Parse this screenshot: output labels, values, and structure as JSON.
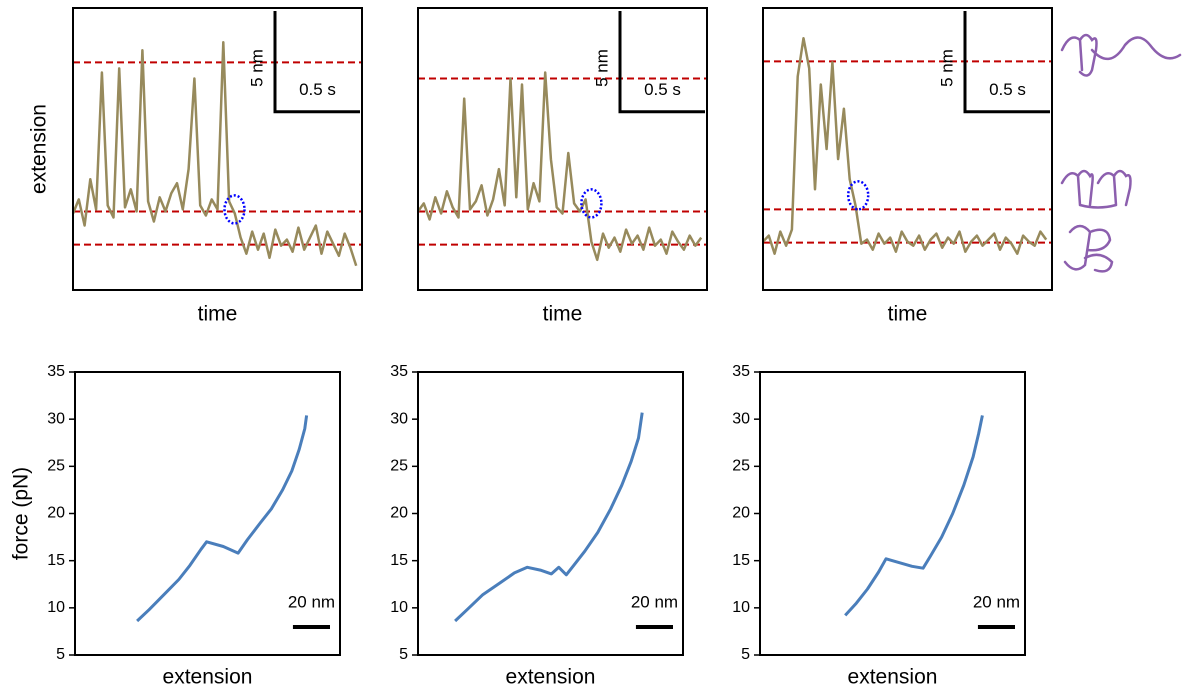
{
  "chart_data": [
    {
      "type": "line",
      "ylabel": "extension",
      "xlabel": "time",
      "xlim": [
        0,
        1.7
      ],
      "ylim": [
        0,
        14
      ],
      "x": [
        0,
        0.034,
        0.068,
        0.102,
        0.136,
        0.17,
        0.204,
        0.238,
        0.272,
        0.306,
        0.34,
        0.374,
        0.408,
        0.442,
        0.476,
        0.51,
        0.544,
        0.578,
        0.612,
        0.646,
        0.68,
        0.714,
        0.748,
        0.782,
        0.816,
        0.85,
        0.884,
        0.918,
        0.952,
        0.986,
        1.02,
        1.054,
        1.088,
        1.122,
        1.156,
        1.19,
        1.224,
        1.258,
        1.292,
        1.326,
        1.36,
        1.394,
        1.428,
        1.462,
        1.496,
        1.53,
        1.564,
        1.598,
        1.632,
        1.666
      ],
      "series": [
        {
          "color": "#978a5c",
          "values": [
            3.8,
            4.5,
            3.2,
            5.5,
            4.0,
            10.8,
            4.2,
            3.6,
            11.0,
            4.1,
            5.0,
            3.9,
            11.9,
            4.4,
            3.4,
            4.6,
            3.9,
            4.8,
            5.3,
            4.0,
            6.0,
            10.5,
            4.2,
            3.7,
            4.5,
            4.0,
            12.3,
            4.4,
            3.8,
            2.6,
            1.8,
            2.9,
            2.0,
            2.8,
            1.6,
            3.0,
            2.2,
            2.5,
            1.9,
            3.1,
            2.0,
            2.6,
            3.2,
            1.8,
            2.9,
            2.3,
            1.7,
            2.8,
            2.1,
            1.2
          ]
        }
      ],
      "levels": {
        "color": "#c00000",
        "values": [
          11.3,
          3.9,
          2.25
        ]
      },
      "circle": {
        "color": "#0000ff",
        "x": 0.95,
        "y": 4.0
      },
      "scale_bars": {
        "y": {
          "value": 5,
          "label": "5 nm"
        },
        "x": {
          "value": 0.5,
          "label": "0.5 s"
        }
      }
    },
    {
      "type": "line",
      "xlabel": "time",
      "xlim": [
        0,
        1.7
      ],
      "ylim": [
        0,
        14
      ],
      "x": [
        0,
        0.034,
        0.068,
        0.102,
        0.136,
        0.17,
        0.204,
        0.238,
        0.272,
        0.306,
        0.34,
        0.374,
        0.408,
        0.442,
        0.476,
        0.51,
        0.544,
        0.578,
        0.612,
        0.646,
        0.68,
        0.714,
        0.748,
        0.782,
        0.816,
        0.85,
        0.884,
        0.918,
        0.952,
        0.986,
        1.02,
        1.054,
        1.088,
        1.122,
        1.156,
        1.19,
        1.224,
        1.258,
        1.292,
        1.326,
        1.36,
        1.394,
        1.428,
        1.462,
        1.496,
        1.53,
        1.564,
        1.598,
        1.632,
        1.666
      ],
      "series": [
        {
          "color": "#978a5c",
          "values": [
            3.9,
            4.3,
            3.5,
            4.6,
            3.8,
            4.9,
            4.1,
            3.6,
            9.5,
            4.0,
            4.4,
            5.2,
            3.7,
            4.5,
            6.0,
            4.2,
            10.5,
            4.6,
            10.2,
            4.0,
            5.3,
            4.4,
            10.8,
            6.5,
            4.1,
            3.8,
            6.8,
            4.3,
            3.9,
            4.5,
            2.4,
            1.5,
            2.8,
            2.1,
            2.6,
            1.9,
            3.0,
            2.3,
            2.7,
            2.0,
            3.1,
            2.2,
            2.5,
            1.8,
            2.9,
            2.4,
            2.0,
            2.7,
            2.2,
            2.6
          ]
        }
      ],
      "levels": {
        "color": "#c00000",
        "values": [
          10.5,
          3.9,
          2.25
        ]
      },
      "circle": {
        "color": "#0000ff",
        "x": 1.02,
        "y": 4.3
      },
      "scale_bars": {
        "y": {
          "value": 5,
          "label": "5 nm"
        },
        "x": {
          "value": 0.5,
          "label": "0.5 s"
        }
      }
    },
    {
      "type": "line",
      "xlabel": "time",
      "xlim": [
        0,
        1.7
      ],
      "ylim": [
        0,
        14
      ],
      "x": [
        0,
        0.034,
        0.068,
        0.102,
        0.136,
        0.17,
        0.204,
        0.238,
        0.272,
        0.306,
        0.34,
        0.374,
        0.408,
        0.442,
        0.476,
        0.51,
        0.544,
        0.578,
        0.612,
        0.646,
        0.68,
        0.714,
        0.748,
        0.782,
        0.816,
        0.85,
        0.884,
        0.918,
        0.952,
        0.986,
        1.02,
        1.054,
        1.088,
        1.122,
        1.156,
        1.19,
        1.224,
        1.258,
        1.292,
        1.326,
        1.36,
        1.394,
        1.428,
        1.462,
        1.496,
        1.53,
        1.564,
        1.598,
        1.632,
        1.666
      ],
      "series": [
        {
          "color": "#978a5c",
          "values": [
            2.4,
            2.7,
            1.8,
            2.9,
            2.2,
            3.0,
            10.6,
            12.5,
            11.0,
            5.0,
            10.2,
            7.0,
            11.3,
            6.5,
            9.0,
            5.5,
            4.2,
            2.3,
            2.5,
            2.0,
            2.8,
            2.3,
            2.6,
            1.9,
            2.9,
            2.4,
            2.2,
            2.7,
            2.0,
            2.5,
            2.8,
            2.1,
            2.6,
            2.3,
            2.9,
            1.9,
            2.4,
            2.7,
            2.2,
            2.5,
            2.8,
            2.0,
            2.6,
            2.3,
            1.8,
            2.7,
            2.4,
            2.2,
            2.9,
            2.5
          ]
        }
      ],
      "levels": {
        "color": "#c00000",
        "values": [
          11.35,
          4.0,
          2.35
        ]
      },
      "circle": {
        "color": "#0000ff",
        "x": 0.56,
        "y": 4.7
      },
      "scale_bars": {
        "y": {
          "value": 5,
          "label": "5 nm"
        },
        "x": {
          "value": 0.5,
          "label": "0.5 s"
        }
      }
    },
    {
      "type": "line",
      "ylabel": "force (pN)",
      "xlabel": "extension",
      "xlim": [
        0,
        143
      ],
      "ylim": [
        5,
        35
      ],
      "yticks": [
        5,
        10,
        15,
        20,
        25,
        30,
        35
      ],
      "series": [
        {
          "color": "#4a7ebb",
          "x": [
            33.5,
            40,
            48,
            56,
            62,
            68,
            71,
            80,
            88,
            93,
            100,
            106,
            112,
            117,
            121,
            124,
            125
          ],
          "values": [
            8.6,
            9.8,
            11.4,
            13.0,
            14.5,
            16.2,
            17.0,
            16.5,
            15.8,
            17.2,
            19.0,
            20.5,
            22.5,
            24.5,
            26.8,
            29.0,
            30.4
          ]
        }
      ],
      "scale_bar": {
        "value": 20,
        "label": "20 nm"
      }
    },
    {
      "type": "line",
      "xlabel": "extension",
      "xlim": [
        0,
        143
      ],
      "ylim": [
        5,
        35
      ],
      "yticks": [
        5,
        10,
        15,
        20,
        25,
        30,
        35
      ],
      "series": [
        {
          "color": "#4a7ebb",
          "x": [
            20,
            27,
            35,
            44,
            52,
            59,
            66,
            72,
            76,
            80,
            84,
            90,
            97,
            104,
            110,
            115,
            119,
            121
          ],
          "values": [
            8.6,
            9.9,
            11.4,
            12.6,
            13.7,
            14.3,
            14.0,
            13.6,
            14.3,
            13.5,
            14.5,
            16.0,
            18.0,
            20.5,
            23.0,
            25.5,
            28.0,
            30.7
          ]
        }
      ],
      "scale_bar": {
        "value": 20,
        "label": "20 nm"
      }
    },
    {
      "type": "line",
      "xlabel": "extension",
      "xlim": [
        0,
        143
      ],
      "ylim": [
        5,
        35
      ],
      "yticks": [
        5,
        10,
        15,
        20,
        25,
        30,
        35
      ],
      "series": [
        {
          "color": "#4a7ebb",
          "x": [
            46,
            52,
            58,
            64,
            68,
            75,
            82,
            88,
            92,
            98,
            104,
            110,
            115,
            118,
            120
          ],
          "values": [
            9.2,
            10.5,
            12.0,
            13.8,
            15.2,
            14.8,
            14.4,
            14.2,
            15.5,
            17.5,
            20.0,
            23.0,
            26.0,
            28.5,
            30.4
          ]
        }
      ],
      "scale_bar": {
        "value": 20,
        "label": "20 nm"
      }
    }
  ]
}
